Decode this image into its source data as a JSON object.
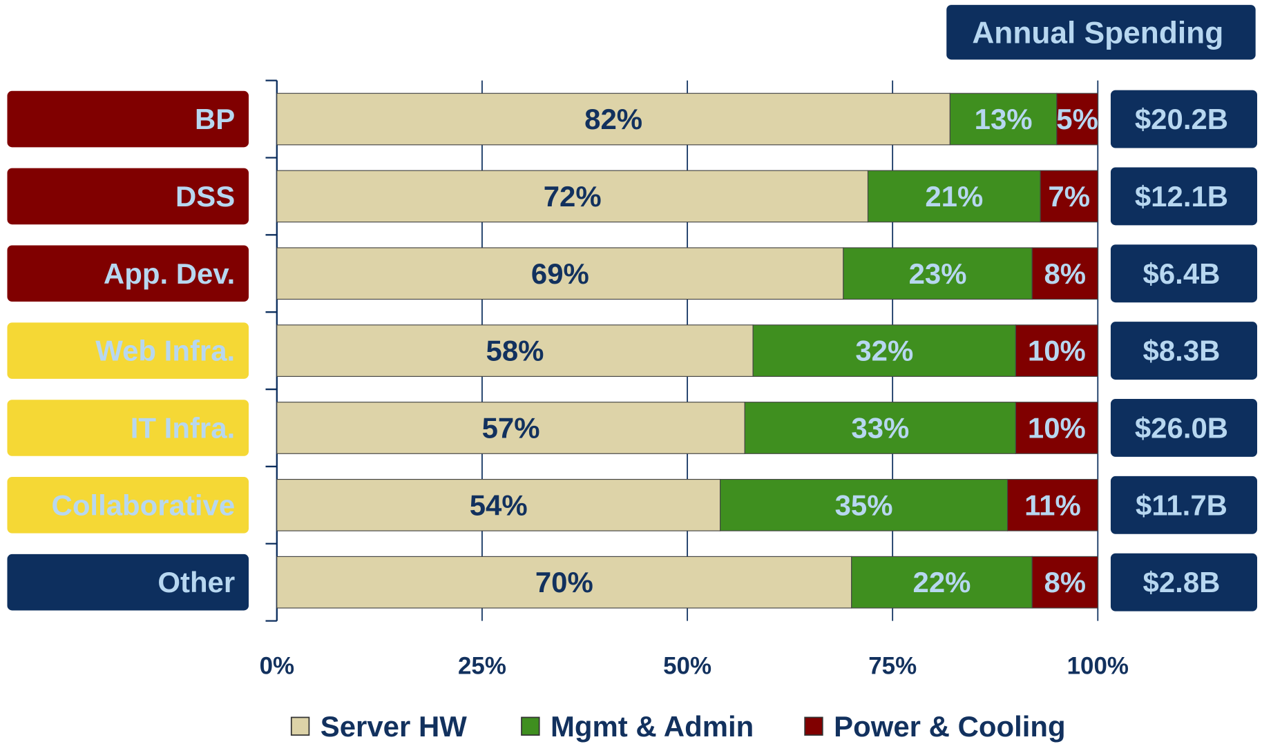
{
  "chart_data": {
    "type": "stacked_bar_horizontal",
    "categories": [
      "BP",
      "DSS",
      "App. Dev.",
      "Web Infra.",
      "IT Infra.",
      "Collaborative",
      "Other"
    ],
    "category_colors": [
      "#800000",
      "#800000",
      "#800000",
      "#f5d835",
      "#f5d835",
      "#f5d835",
      "#0d2f5e"
    ],
    "series": [
      {
        "name": "Server HW",
        "color": "#ddd3a8",
        "values": [
          82,
          72,
          69,
          58,
          57,
          54,
          70
        ],
        "value_labels": [
          "82%",
          "72%",
          "69%",
          "58%",
          "57%",
          "54%",
          "70%"
        ]
      },
      {
        "name": "Mgmt & Admin",
        "color": "#3f8f1f",
        "values": [
          13,
          21,
          23,
          32,
          33,
          35,
          22
        ],
        "value_labels": [
          "13%",
          "21%",
          "23%",
          "32%",
          "33%",
          "35%",
          "22%"
        ]
      },
      {
        "name": "Power & Cooling",
        "color": "#800000",
        "values": [
          5,
          7,
          8,
          10,
          10,
          11,
          8
        ],
        "value_labels": [
          "5%",
          "7%",
          "8%",
          "10%",
          "10%",
          "11%",
          "8%"
        ]
      }
    ],
    "xlim": [
      0,
      100
    ],
    "xticks": [
      {
        "value": 0,
        "label": "0%"
      },
      {
        "value": 25,
        "label": "25%"
      },
      {
        "value": 50,
        "label": "50%"
      },
      {
        "value": 75,
        "label": "75%"
      },
      {
        "value": 100,
        "label": "100%"
      }
    ],
    "grid": true,
    "spending_title": "Annual Spending",
    "spending_labels": [
      "$20.2B",
      "$12.1B",
      "$6.4B",
      "$8.3B",
      "$26.0B",
      "$11.7B",
      "$2.8B"
    ]
  }
}
